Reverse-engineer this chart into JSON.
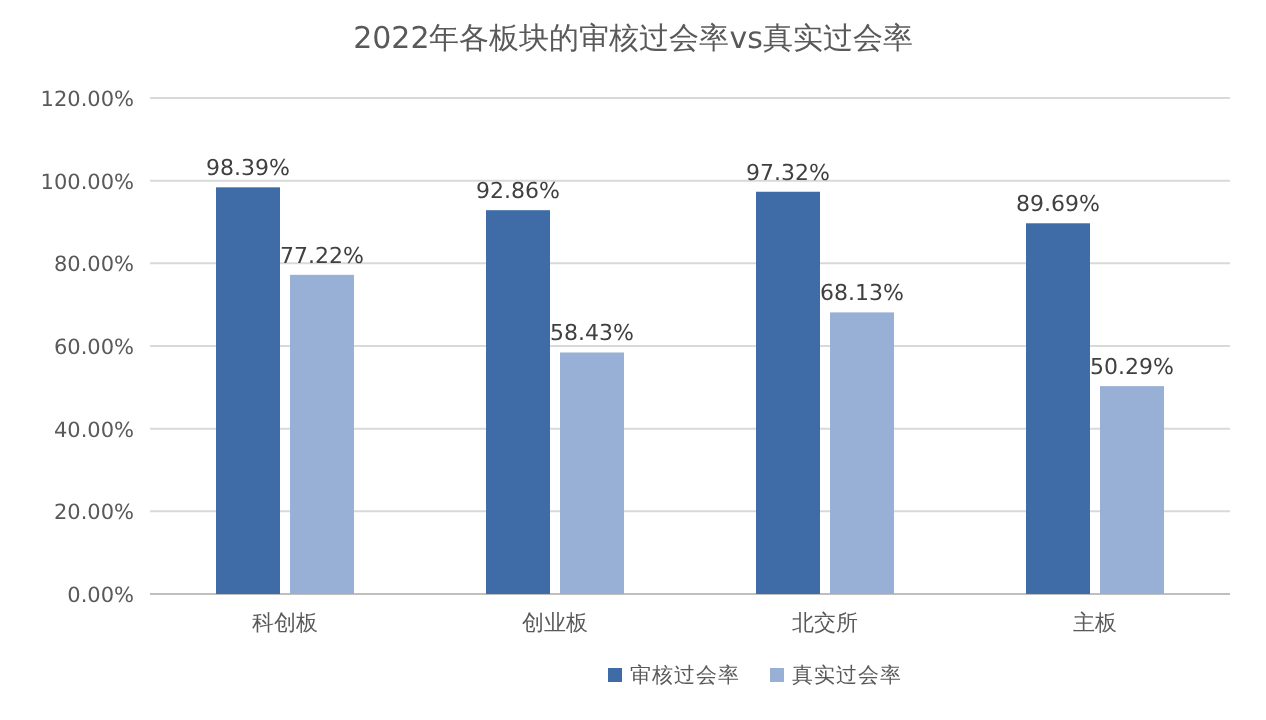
{
  "chart_data": {
    "type": "bar",
    "title": "2022年各板块的审核过会率vs真实过会率",
    "categories": [
      "科创板",
      "创业板",
      "北交所",
      "主板"
    ],
    "series": [
      {
        "name": "审核过会率",
        "color": "#3f6ca6",
        "values": [
          98.39,
          92.86,
          97.32,
          89.69
        ],
        "value_labels": [
          "98.39%",
          "92.86%",
          "97.32%",
          "89.69%"
        ]
      },
      {
        "name": "真实过会率",
        "color": "#98b0d6",
        "values": [
          77.22,
          58.43,
          68.13,
          50.29
        ],
        "value_labels": [
          "77.22%",
          "58.43%",
          "68.13%",
          "50.29%"
        ]
      }
    ],
    "ylim": [
      0,
      120
    ],
    "yticks": [
      {
        "value": 0,
        "label": "0.00%"
      },
      {
        "value": 20,
        "label": "20.00%"
      },
      {
        "value": 40,
        "label": "40.00%"
      },
      {
        "value": 60,
        "label": "60.00%"
      },
      {
        "value": 80,
        "label": "80.00%"
      },
      {
        "value": 100,
        "label": "100.00%"
      },
      {
        "value": 120,
        "label": "120.00%"
      }
    ],
    "grid": "y",
    "legend": "bottom"
  }
}
